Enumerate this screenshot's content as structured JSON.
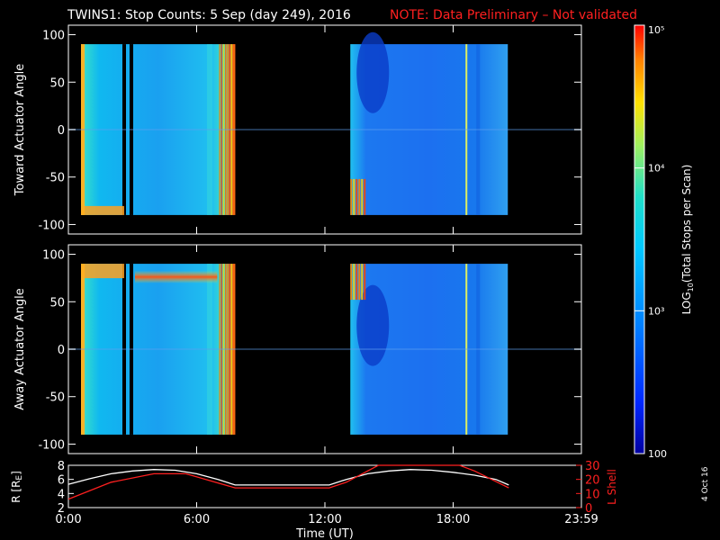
{
  "title": {
    "main": "TWINS1: Stop Counts:  5 Sep (day 249), 2016",
    "note": "NOTE: Data Preliminary – Not validated"
  },
  "colors": {
    "background": "#000000",
    "axes": "#ffffff",
    "note": "#ff2020",
    "lshell": "#ff2020",
    "radius": "#ffffff",
    "colormap": [
      "#0000a0",
      "#0028ff",
      "#0080ff",
      "#00c8ff",
      "#20e0c8",
      "#a0f060",
      "#ffe000",
      "#ff8000",
      "#ff0000"
    ]
  },
  "chart_data": [
    {
      "type": "heatmap",
      "name": "toward",
      "ylabel": "Toward Actuator Angle",
      "ylim": [
        -110,
        110
      ],
      "yticks": [
        -100,
        -50,
        0,
        50,
        100
      ],
      "xlim": [
        0,
        24
      ],
      "xticks": [
        0,
        6,
        12,
        18,
        24
      ],
      "data_blocks": [
        {
          "start_hr": 0.0,
          "end_hr": 7.85,
          "ymin": -90,
          "ymax": 90
        },
        {
          "start_hr": 12.6,
          "end_hr": 20.6,
          "ymin": -90,
          "ymax": 90
        }
      ],
      "colorbar": {
        "label": "LOG10(Total Stops per Scan)",
        "min": 100,
        "max": 100000,
        "scale": "log"
      }
    },
    {
      "type": "heatmap",
      "name": "away",
      "ylabel": "Away Actuator Angle",
      "ylim": [
        -110,
        110
      ],
      "yticks": [
        -100,
        -50,
        0,
        50,
        100
      ],
      "xlim": [
        0,
        24
      ],
      "xticks": [
        0,
        6,
        12,
        18,
        24
      ],
      "data_blocks": [
        {
          "start_hr": 0.0,
          "end_hr": 7.85,
          "ymin": -90,
          "ymax": 90
        },
        {
          "start_hr": 12.6,
          "end_hr": 20.6,
          "ymin": -90,
          "ymax": 90
        }
      ]
    },
    {
      "type": "line",
      "ylabel": "R [RE]",
      "ylim": [
        2,
        8
      ],
      "yticks": [
        2,
        4,
        6,
        8
      ],
      "y2label": "L Shell",
      "y2lim": [
        0,
        30
      ],
      "y2ticks": [
        0,
        10,
        20,
        30
      ],
      "xlabel": "Time (UT)",
      "xlim": [
        0,
        24
      ],
      "xtick_labels": [
        "0:00",
        "6:00",
        "12:00",
        "18:00",
        "23:59"
      ],
      "series": [
        {
          "axis": "left",
          "x": [
            0,
            1,
            2,
            3,
            4,
            5,
            6,
            7,
            7.8,
            12.2,
            13,
            14,
            15,
            16,
            17,
            18,
            19,
            20,
            20.6
          ],
          "y": [
            5.3,
            6.1,
            6.8,
            7.2,
            7.4,
            7.3,
            6.8,
            6.0,
            5.2,
            5.2,
            6.0,
            6.8,
            7.2,
            7.4,
            7.3,
            7.0,
            6.6,
            6.0,
            5.2
          ]
        },
        {
          "axis": "right",
          "x": [
            0,
            2,
            4,
            5.5,
            7.8,
            12.2,
            13,
            14,
            14.5,
            18.3,
            19,
            20.6
          ],
          "y": [
            6,
            18,
            24,
            24,
            14,
            14,
            18,
            26,
            32,
            32,
            26,
            14
          ]
        }
      ]
    }
  ],
  "colorbar": {
    "label": "LOG10(Total Stops per Scan)",
    "ticks": [
      "10⁵",
      "10⁴",
      "10³",
      "100"
    ]
  },
  "footer": {
    "date_stamp": "4 Oct 16"
  }
}
